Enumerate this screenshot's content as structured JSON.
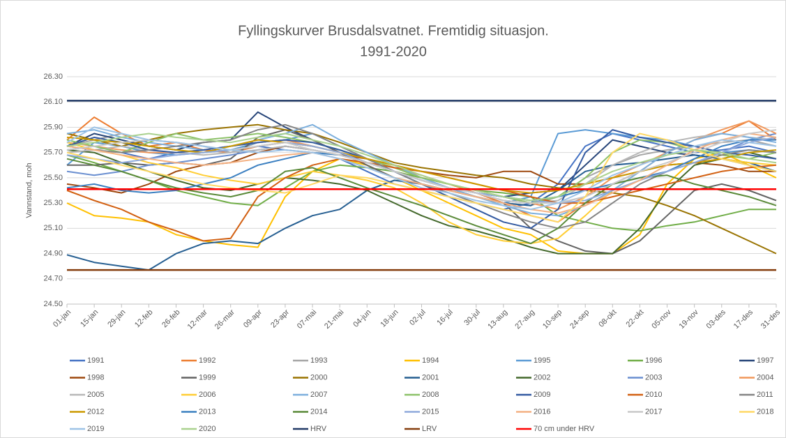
{
  "chart_data": {
    "type": "line",
    "title": [
      "Fyllingskurver Brusdalsvatnet. Fremtidig situasjon.",
      "1991-2020"
    ],
    "y_label": "Vannstand, moh",
    "categories": [
      "01-jan",
      "15-jan",
      "29-jan",
      "12-feb",
      "26-feb",
      "12-mar",
      "26-mar",
      "09-apr",
      "23-apr",
      "07-mai",
      "21-mai",
      "04-jun",
      "18-jun",
      "02-jul",
      "16-jul",
      "30-jul",
      "13-aug",
      "27-aug",
      "10-sep",
      "24-sep",
      "08-okt",
      "22-okt",
      "05-nov",
      "19-nov",
      "03-des",
      "17-des",
      "31-des"
    ],
    "ylim": [
      24.5,
      26.3
    ],
    "yticks": [
      {
        "value": 24.5,
        "label": "24.50"
      },
      {
        "value": 24.7,
        "label": "24.70"
      },
      {
        "value": 24.9,
        "label": "24.90"
      },
      {
        "value": 25.1,
        "label": "25.10"
      },
      {
        "value": 25.3,
        "label": "25.30"
      },
      {
        "value": 25.5,
        "label": "25.50"
      },
      {
        "value": 25.7,
        "label": "25.70"
      },
      {
        "value": 25.9,
        "label": "25.90"
      },
      {
        "value": 26.1,
        "label": "26.10"
      },
      {
        "value": 26.3,
        "label": "26.30"
      }
    ],
    "grid": true,
    "legend": "bottom",
    "series": [
      {
        "name": "1991",
        "color": "#4472c4",
        "values": [
          25.72,
          25.75,
          25.7,
          25.65,
          25.7,
          25.72,
          25.7,
          25.75,
          25.72,
          25.7,
          25.65,
          25.55,
          25.45,
          25.4,
          25.35,
          25.3,
          25.25,
          25.3,
          25.45,
          25.75,
          25.85,
          25.8,
          25.75,
          25.7,
          25.72,
          25.75,
          25.7
        ]
      },
      {
        "name": "1992",
        "color": "#ed7d31",
        "values": [
          25.8,
          25.98,
          25.85,
          25.75,
          25.78,
          25.72,
          25.7,
          25.75,
          25.78,
          25.75,
          25.7,
          25.62,
          25.55,
          25.5,
          25.45,
          25.38,
          25.3,
          25.2,
          25.15,
          25.3,
          25.45,
          25.55,
          25.7,
          25.8,
          25.85,
          25.95,
          25.8
        ]
      },
      {
        "name": "1993",
        "color": "#a5a5a5",
        "values": [
          25.75,
          25.8,
          25.85,
          25.8,
          25.78,
          25.75,
          25.7,
          25.78,
          25.8,
          25.75,
          25.7,
          25.65,
          25.55,
          25.48,
          25.42,
          25.35,
          25.3,
          25.28,
          25.35,
          25.5,
          25.6,
          25.68,
          25.72,
          25.75,
          25.78,
          25.8,
          25.75
        ]
      },
      {
        "name": "1994",
        "color": "#ffc000",
        "values": [
          25.3,
          25.2,
          25.18,
          25.15,
          25.05,
          25.0,
          24.97,
          24.95,
          25.35,
          25.55,
          25.65,
          25.6,
          25.5,
          25.4,
          25.3,
          25.2,
          25.1,
          25.05,
          24.92,
          24.9,
          24.9,
          25.05,
          25.45,
          25.65,
          25.7,
          25.6,
          25.5
        ]
      },
      {
        "name": "1995",
        "color": "#5b9bd5",
        "values": [
          25.6,
          25.78,
          25.75,
          25.7,
          25.68,
          25.7,
          25.72,
          25.78,
          25.8,
          25.85,
          25.75,
          25.65,
          25.55,
          25.45,
          25.4,
          25.35,
          25.3,
          25.35,
          25.85,
          25.88,
          25.85,
          25.82,
          25.8,
          25.75,
          25.7,
          25.72,
          25.7
        ]
      },
      {
        "name": "1996",
        "color": "#70ad47",
        "values": [
          25.68,
          25.62,
          25.55,
          25.48,
          25.4,
          25.35,
          25.3,
          25.28,
          25.42,
          25.55,
          25.6,
          25.58,
          25.55,
          25.5,
          25.45,
          25.4,
          25.38,
          25.35,
          25.2,
          25.15,
          25.1,
          25.08,
          25.12,
          25.15,
          25.2,
          25.25,
          25.25
        ]
      },
      {
        "name": "1997",
        "color": "#264478",
        "values": [
          25.75,
          25.85,
          25.8,
          25.75,
          25.72,
          25.78,
          25.8,
          26.02,
          25.9,
          25.8,
          25.7,
          25.62,
          25.55,
          25.48,
          25.42,
          25.38,
          25.35,
          25.38,
          25.4,
          25.6,
          25.8,
          25.75,
          25.7,
          25.68,
          25.65,
          25.6,
          25.55
        ]
      },
      {
        "name": "1998",
        "color": "#9e480e",
        "values": [
          25.45,
          25.42,
          25.38,
          25.45,
          25.55,
          25.6,
          25.62,
          25.7,
          25.75,
          25.72,
          25.68,
          25.65,
          25.6,
          25.55,
          25.52,
          25.5,
          25.55,
          25.55,
          25.45,
          25.45,
          25.5,
          25.55,
          25.6,
          25.62,
          25.6,
          25.55,
          25.55
        ]
      },
      {
        "name": "1999",
        "color": "#636363",
        "values": [
          25.6,
          25.6,
          25.62,
          25.6,
          25.62,
          25.6,
          25.65,
          25.82,
          25.88,
          25.8,
          25.7,
          25.6,
          25.5,
          25.45,
          25.4,
          25.35,
          25.3,
          25.1,
          25.0,
          24.92,
          24.9,
          25.0,
          25.2,
          25.4,
          25.45,
          25.4,
          25.32
        ]
      },
      {
        "name": "2000",
        "color": "#997300",
        "values": [
          25.85,
          25.8,
          25.75,
          25.8,
          25.85,
          25.88,
          25.9,
          25.92,
          25.88,
          25.85,
          25.78,
          25.7,
          25.62,
          25.58,
          25.55,
          25.52,
          25.5,
          25.45,
          25.42,
          25.4,
          25.38,
          25.35,
          25.28,
          25.2,
          25.1,
          25.0,
          24.9
        ]
      },
      {
        "name": "2001",
        "color": "#255e91",
        "values": [
          24.89,
          24.83,
          24.8,
          24.77,
          24.9,
          24.98,
          25.0,
          24.98,
          25.1,
          25.2,
          25.25,
          25.4,
          25.48,
          25.45,
          25.4,
          25.35,
          25.3,
          25.28,
          25.4,
          25.55,
          25.6,
          25.62,
          25.65,
          25.68,
          25.65,
          25.62,
          25.55
        ]
      },
      {
        "name": "2002",
        "color": "#43682b",
        "values": [
          25.72,
          25.7,
          25.62,
          25.55,
          25.48,
          25.42,
          25.4,
          25.45,
          25.5,
          25.48,
          25.45,
          25.4,
          25.3,
          25.2,
          25.12,
          25.08,
          25.02,
          24.95,
          24.9,
          24.9,
          24.9,
          25.1,
          25.4,
          25.6,
          25.65,
          25.7,
          25.65
        ]
      },
      {
        "name": "2003",
        "color": "#698ed0",
        "values": [
          25.55,
          25.52,
          25.55,
          25.6,
          25.62,
          25.65,
          25.68,
          25.72,
          25.75,
          25.72,
          25.68,
          25.62,
          25.55,
          25.48,
          25.42,
          25.38,
          25.32,
          25.3,
          25.3,
          25.35,
          25.45,
          25.55,
          25.6,
          25.62,
          25.7,
          25.8,
          25.85
        ]
      },
      {
        "name": "2004",
        "color": "#f1975a",
        "values": [
          25.78,
          25.75,
          25.72,
          25.7,
          25.7,
          25.72,
          25.75,
          25.78,
          25.8,
          25.75,
          25.7,
          25.65,
          25.58,
          25.52,
          25.45,
          25.4,
          25.35,
          25.3,
          25.25,
          25.35,
          25.5,
          25.6,
          25.7,
          25.8,
          25.88,
          25.95,
          25.85
        ]
      },
      {
        "name": "2005",
        "color": "#b7b7b7",
        "values": [
          25.7,
          25.72,
          25.75,
          25.72,
          25.7,
          25.68,
          25.7,
          25.72,
          25.75,
          25.72,
          25.68,
          25.62,
          25.55,
          25.48,
          25.42,
          25.38,
          25.32,
          25.3,
          25.32,
          25.45,
          25.6,
          25.7,
          25.78,
          25.82,
          25.85,
          25.82,
          25.8
        ]
      },
      {
        "name": "2006",
        "color": "#ffcd33",
        "values": [
          25.78,
          25.72,
          25.68,
          25.62,
          25.58,
          25.52,
          25.48,
          25.45,
          25.5,
          25.55,
          25.52,
          25.48,
          25.42,
          25.3,
          25.15,
          25.05,
          25.0,
          24.98,
          25.02,
          25.2,
          25.4,
          25.55,
          25.6,
          25.62,
          25.65,
          25.62,
          25.6
        ]
      },
      {
        "name": "2007",
        "color": "#7cafdd",
        "values": [
          25.85,
          25.88,
          25.82,
          25.78,
          25.75,
          25.72,
          25.75,
          25.8,
          25.85,
          25.92,
          25.8,
          25.7,
          25.6,
          25.5,
          25.42,
          25.35,
          25.28,
          25.22,
          25.2,
          25.28,
          25.4,
          25.55,
          25.7,
          25.8,
          25.85,
          25.82,
          25.78
        ]
      },
      {
        "name": "2008",
        "color": "#8cc168",
        "values": [
          25.8,
          25.75,
          25.7,
          25.78,
          25.85,
          25.8,
          25.82,
          25.85,
          25.82,
          25.78,
          25.72,
          25.65,
          25.58,
          25.5,
          25.45,
          25.4,
          25.35,
          25.3,
          25.35,
          25.5,
          25.7,
          25.8,
          25.78,
          25.72,
          25.68,
          25.65,
          25.7
        ]
      },
      {
        "name": "2009",
        "color": "#335aa1",
        "values": [
          25.75,
          25.82,
          25.78,
          25.72,
          25.7,
          25.72,
          25.75,
          25.78,
          25.8,
          25.78,
          25.72,
          25.65,
          25.55,
          25.45,
          25.35,
          25.25,
          25.15,
          25.1,
          25.25,
          25.7,
          25.88,
          25.82,
          25.78,
          25.75,
          25.7,
          25.68,
          25.65
        ]
      },
      {
        "name": "2010",
        "color": "#d26012",
        "values": [
          25.4,
          25.32,
          25.25,
          25.15,
          25.08,
          25.0,
          25.02,
          25.35,
          25.5,
          25.6,
          25.65,
          25.62,
          25.58,
          25.55,
          25.5,
          25.45,
          25.4,
          25.35,
          25.3,
          25.3,
          25.35,
          25.4,
          25.45,
          25.5,
          25.55,
          25.58,
          25.6
        ]
      },
      {
        "name": "2011",
        "color": "#848484",
        "values": [
          25.75,
          25.72,
          25.7,
          25.72,
          25.75,
          25.78,
          25.8,
          25.88,
          25.92,
          25.85,
          25.75,
          25.65,
          25.55,
          25.45,
          25.38,
          25.3,
          25.22,
          25.15,
          25.1,
          25.15,
          25.3,
          25.45,
          25.55,
          25.62,
          25.68,
          25.72,
          25.7
        ]
      },
      {
        "name": "2012",
        "color": "#cc9a00",
        "values": [
          25.82,
          25.8,
          25.78,
          25.75,
          25.72,
          25.7,
          25.75,
          25.8,
          25.78,
          25.75,
          25.7,
          25.65,
          25.6,
          25.55,
          25.5,
          25.45,
          25.4,
          25.38,
          25.4,
          25.45,
          25.5,
          25.55,
          25.6,
          25.62,
          25.65,
          25.7,
          25.72
        ]
      },
      {
        "name": "2013",
        "color": "#3c80c1",
        "values": [
          25.42,
          25.45,
          25.4,
          25.38,
          25.4,
          25.45,
          25.5,
          25.6,
          25.65,
          25.7,
          25.68,
          25.62,
          25.55,
          25.48,
          25.42,
          25.38,
          25.35,
          25.32,
          25.35,
          25.4,
          25.45,
          25.5,
          25.55,
          25.65,
          25.75,
          25.8,
          25.8
        ]
      },
      {
        "name": "2014",
        "color": "#5a8a39",
        "values": [
          25.65,
          25.6,
          25.55,
          25.48,
          25.42,
          25.38,
          25.35,
          25.4,
          25.55,
          25.58,
          25.5,
          25.42,
          25.35,
          25.28,
          25.2,
          25.12,
          25.05,
          24.98,
          25.1,
          25.3,
          25.45,
          25.5,
          25.52,
          25.45,
          25.4,
          25.35,
          25.28
        ]
      },
      {
        "name": "2015",
        "color": "#8faadc",
        "values": [
          25.68,
          25.65,
          25.62,
          25.65,
          25.68,
          25.7,
          25.72,
          25.75,
          25.78,
          25.75,
          25.7,
          25.62,
          25.55,
          25.48,
          25.42,
          25.38,
          25.35,
          25.32,
          25.3,
          25.32,
          25.4,
          25.48,
          25.55,
          25.62,
          25.7,
          25.78,
          25.82
        ]
      },
      {
        "name": "2016",
        "color": "#f4b183",
        "values": [
          25.75,
          25.72,
          25.68,
          25.65,
          25.62,
          25.6,
          25.62,
          25.65,
          25.68,
          25.7,
          25.65,
          25.58,
          25.5,
          25.45,
          25.4,
          25.35,
          25.3,
          25.25,
          25.22,
          25.28,
          25.38,
          25.48,
          25.6,
          25.72,
          25.8,
          25.85,
          25.82
        ]
      },
      {
        "name": "2017",
        "color": "#c9c9c9",
        "values": [
          25.72,
          25.75,
          25.78,
          25.8,
          25.78,
          25.75,
          25.72,
          25.75,
          25.78,
          25.72,
          25.68,
          25.62,
          25.55,
          25.48,
          25.42,
          25.38,
          25.32,
          25.3,
          25.3,
          25.35,
          25.45,
          25.55,
          25.62,
          25.7,
          25.78,
          25.85,
          25.88
        ]
      },
      {
        "name": "2018",
        "color": "#ffd966",
        "values": [
          25.7,
          25.65,
          25.6,
          25.55,
          25.5,
          25.45,
          25.42,
          25.4,
          25.38,
          25.45,
          25.52,
          25.5,
          25.45,
          25.4,
          25.35,
          25.3,
          25.25,
          25.2,
          25.15,
          25.35,
          25.7,
          25.85,
          25.8,
          25.72,
          25.65,
          25.6,
          25.55
        ]
      },
      {
        "name": "2019",
        "color": "#9dc3e6",
        "values": [
          25.78,
          25.9,
          25.85,
          25.8,
          25.78,
          25.75,
          25.72,
          25.7,
          25.72,
          25.7,
          25.65,
          25.58,
          25.5,
          25.42,
          25.38,
          25.32,
          25.28,
          25.25,
          25.3,
          25.4,
          25.52,
          25.6,
          25.68,
          25.75,
          25.8,
          25.78,
          25.75
        ]
      },
      {
        "name": "2020",
        "color": "#a9d18e",
        "values": [
          25.75,
          25.78,
          25.82,
          25.85,
          25.82,
          25.8,
          25.78,
          25.82,
          25.85,
          25.8,
          25.75,
          25.68,
          25.6,
          25.52,
          25.45,
          25.4,
          25.35,
          25.32,
          25.35,
          25.45,
          25.55,
          25.62,
          25.68,
          25.72,
          25.7,
          25.65,
          25.62
        ]
      },
      {
        "name": "HRV",
        "color": "#203864",
        "values": [
          26.11,
          26.11,
          26.11,
          26.11,
          26.11,
          26.11,
          26.11,
          26.11,
          26.11,
          26.11,
          26.11,
          26.11,
          26.11,
          26.11,
          26.11,
          26.11,
          26.11,
          26.11,
          26.11,
          26.11,
          26.11,
          26.11,
          26.11,
          26.11,
          26.11,
          26.11,
          26.11
        ]
      },
      {
        "name": "LRV",
        "color": "#843c0c",
        "values": [
          24.77,
          24.77,
          24.77,
          24.77,
          24.77,
          24.77,
          24.77,
          24.77,
          24.77,
          24.77,
          24.77,
          24.77,
          24.77,
          24.77,
          24.77,
          24.77,
          24.77,
          24.77,
          24.77,
          24.77,
          24.77,
          24.77,
          24.77,
          24.77,
          24.77,
          24.77,
          24.77
        ]
      },
      {
        "name": "70 cm under HRV",
        "color": "#ff0000",
        "values": [
          25.41,
          25.41,
          25.41,
          25.41,
          25.41,
          25.41,
          25.41,
          25.41,
          25.41,
          25.41,
          25.41,
          25.41,
          25.41,
          25.41,
          25.41,
          25.41,
          25.41,
          25.41,
          25.41,
          25.41,
          25.41,
          25.41,
          25.41,
          25.41,
          25.41,
          25.41,
          25.41
        ]
      }
    ]
  }
}
